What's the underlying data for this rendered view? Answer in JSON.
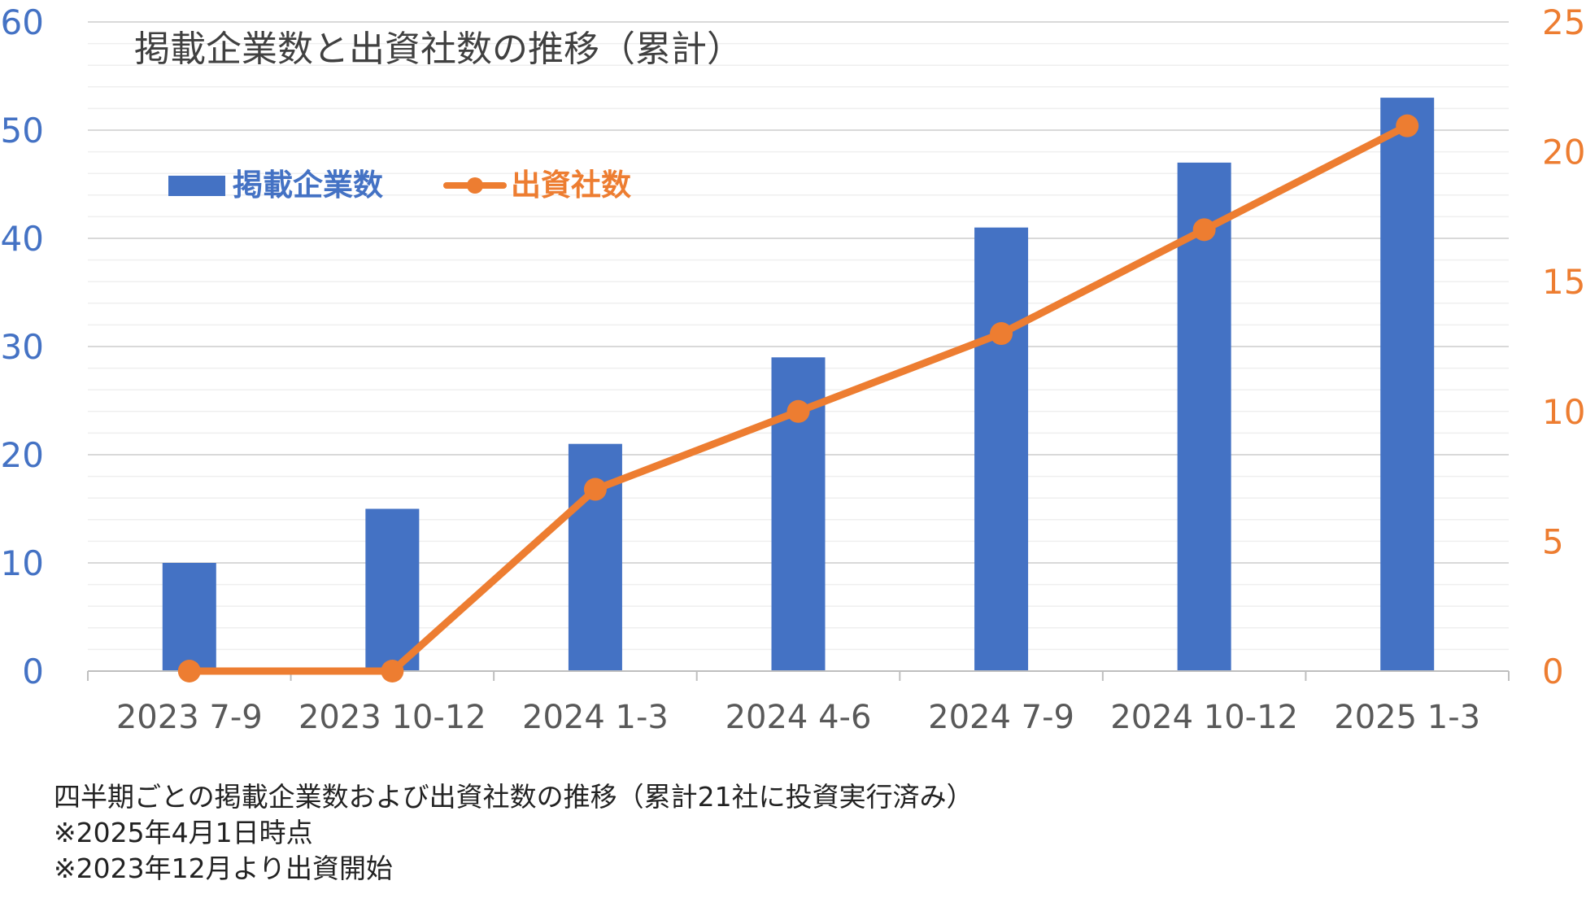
{
  "colors": {
    "bar": "#4472c4",
    "line": "#ed7d31",
    "left_axis_text": "#4472c4",
    "right_axis_text": "#ed7d31",
    "category_text": "#595959",
    "title_text": "#404040",
    "grid_major": "#d9d9d9",
    "grid_minor": "#efefef"
  },
  "chart_data": {
    "type": "bar",
    "title": "掲載企業数と出資社数の推移（累計）",
    "categories": [
      "2023 7-9",
      "2023 10-12",
      "2024 1-3",
      "2024 4-6",
      "2024 7-9",
      "2024 10-12",
      "2025 1-3"
    ],
    "series": [
      {
        "name": "掲載企業数",
        "type": "bar",
        "axis": "left",
        "values": [
          10,
          15,
          21,
          29,
          41,
          47,
          53
        ]
      },
      {
        "name": "出資社数",
        "type": "line",
        "axis": "right",
        "values": [
          0,
          0,
          7,
          10,
          13,
          17,
          21
        ]
      }
    ],
    "y_left": {
      "range": [
        0,
        60
      ],
      "ticks": [
        "0",
        "10",
        "20",
        "30",
        "40",
        "50",
        "60"
      ]
    },
    "y_right": {
      "range": [
        0,
        25
      ],
      "ticks": [
        "0",
        "5",
        "10",
        "15",
        "20",
        "25"
      ]
    },
    "grid": true,
    "legend_position": "top-left"
  },
  "notes": [
    "四半期ごとの掲載企業数および出資社数の推移（累計21社に投資実行済み）",
    "※2025年4月1日時点",
    "※2023年12月より出資開始"
  ]
}
